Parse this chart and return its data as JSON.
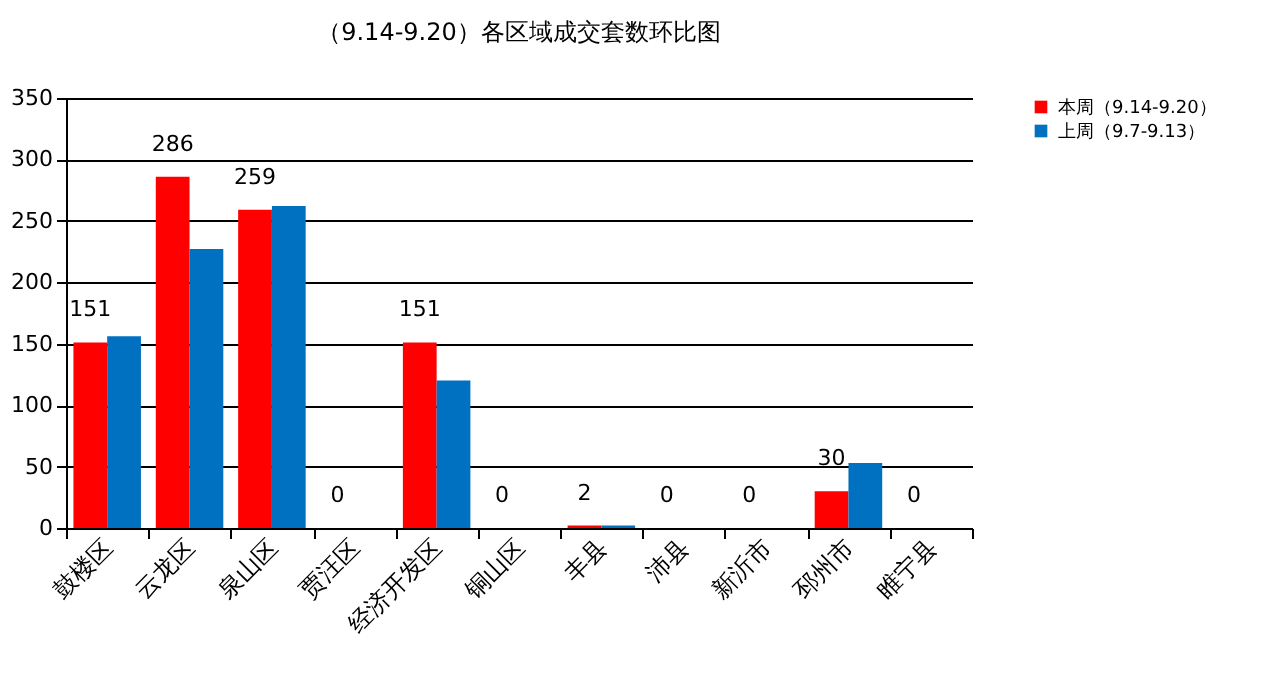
{
  "chart_data": {
    "type": "bar",
    "title": "（9.14-9.20）各区域成交套数环比图",
    "categories": [
      "鼓楼区",
      "云龙区",
      "泉山区",
      "贾汪区",
      "经济开发区",
      "铜山区",
      "丰县",
      "沛县",
      "新沂市",
      "邳州市",
      "睢宁县"
    ],
    "series": [
      {
        "name": "本周（9.14-9.20）",
        "color": "#ff0000",
        "values": [
          151,
          286,
          259,
          0,
          151,
          0,
          2,
          0,
          0,
          30,
          0
        ],
        "value_labels": [
          "151",
          "286",
          "259",
          "0",
          "151",
          "0",
          "2",
          "0",
          "0",
          "30",
          "0"
        ]
      },
      {
        "name": "上周（9.7-9.13）",
        "color": "#0070c0",
        "values": [
          156,
          227,
          262,
          0,
          120,
          0,
          2,
          0,
          0,
          53,
          0
        ]
      }
    ],
    "ylim": [
      0,
      350
    ],
    "yticks": [
      0,
      50,
      100,
      150,
      200,
      250,
      300,
      350
    ],
    "grid": "y",
    "legend": "right"
  }
}
